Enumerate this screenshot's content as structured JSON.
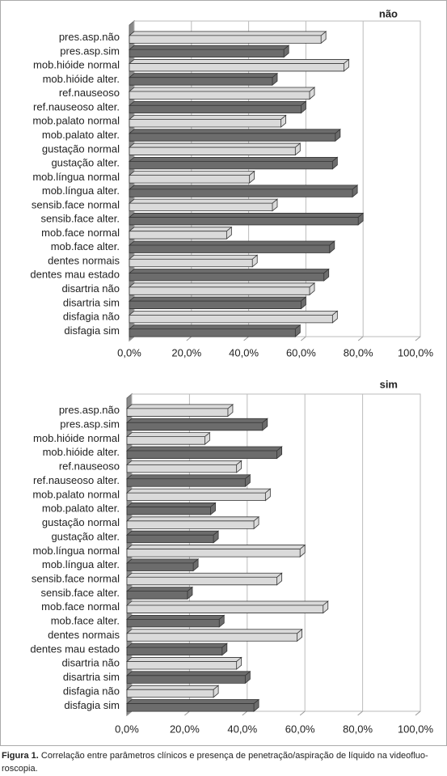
{
  "chart_data": [
    {
      "type": "bar",
      "orientation": "horizontal",
      "title": "não",
      "categories": [
        "pres.asp.não",
        "pres.asp.sim",
        "mob.hióide normal",
        "mob.hióide alter.",
        "ref.nauseoso",
        "ref.nauseoso alter.",
        "mob.palato normal",
        "mob.palato alter.",
        "gustação normal",
        "gustação alter.",
        "mob.língua normal",
        "mob.língua alter.",
        "sensib.face normal",
        "sensib.face alter.",
        "mob.face normal",
        "mob.face alter.",
        "dentes normais",
        "dentes mau estado",
        "disartria não",
        "disartria sim",
        "disfagia não",
        "disfagia sim"
      ],
      "values": [
        67,
        54,
        75,
        50,
        63,
        60,
        53,
        72,
        58,
        71,
        42,
        78,
        50,
        80,
        34,
        70,
        43,
        68,
        63,
        60,
        71,
        58
      ],
      "colors": [
        "#dadada",
        "#6c6c6c"
      ],
      "xlim": [
        0,
        100
      ],
      "xticks": [
        {
          "value": 0,
          "label": "0,0%"
        },
        {
          "value": 20,
          "label": "20,0%"
        },
        {
          "value": 40,
          "label": "40,0%"
        },
        {
          "value": 60,
          "label": "60,0%"
        },
        {
          "value": 80,
          "label": "80,0%"
        },
        {
          "value": 100,
          "label": "100,0%"
        }
      ],
      "grid": true
    },
    {
      "type": "bar",
      "orientation": "horizontal",
      "title": "sim",
      "categories": [
        "pres.asp.não",
        "pres.asp.sim",
        "mob.hióide normal",
        "mob.hióide alter.",
        "ref.nauseoso",
        "ref.nauseoso alter.",
        "mob.palato normal",
        "mob.palato alter.",
        "gustação normal",
        "gustação alter.",
        "mob.língua normal",
        "mob.língua alter.",
        "sensib.face normal",
        "sensib.face alter.",
        "mob.face normal",
        "mob.face alter.",
        "dentes normais",
        "dentes mau estado",
        "disartria não",
        "disartria sim",
        "disfagia não",
        "disfagia sim"
      ],
      "values": [
        35,
        47,
        27,
        52,
        38,
        41,
        48,
        29,
        44,
        30,
        60,
        23,
        52,
        21,
        68,
        32,
        59,
        33,
        38,
        41,
        30,
        44
      ],
      "colors": [
        "#dadada",
        "#6c6c6c"
      ],
      "xlim": [
        0,
        100
      ],
      "xticks": [
        {
          "value": 0,
          "label": "0,0%"
        },
        {
          "value": 20,
          "label": "20,0%"
        },
        {
          "value": 40,
          "label": "40,0%"
        },
        {
          "value": 60,
          "label": "60,0%"
        },
        {
          "value": 80,
          "label": "80,0%"
        },
        {
          "value": 100,
          "label": "100,0%"
        }
      ],
      "grid": true
    }
  ],
  "caption": {
    "label": "Figura 1.",
    "lines": [
      "Correlação entre parâmetros clínicos e presença de penetração/aspiração de líquido na videofluo-",
      "roscopia."
    ]
  }
}
